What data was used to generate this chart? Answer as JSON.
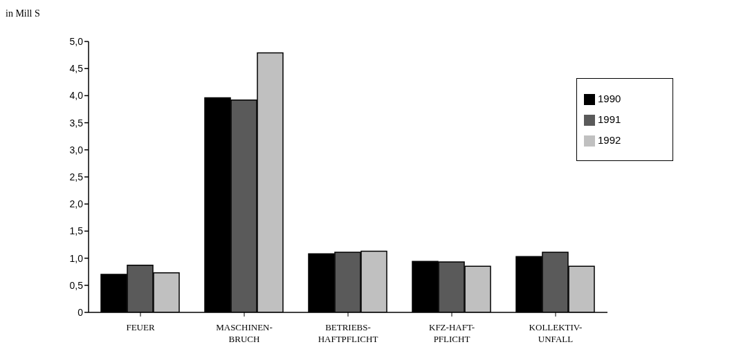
{
  "chart_data": {
    "type": "bar",
    "ylabel": "in Mill S",
    "categories": [
      "FEUER",
      "MASCHINEN-\nBRUCH",
      "BETRIEBS-\nHAFTPFLICHT",
      "KFZ-HAFT-\nPFLICHT",
      "KOLLEKTIV-\nUNFALL"
    ],
    "series": [
      {
        "name": "1990",
        "color": "#000000",
        "values": [
          0.7,
          3.96,
          1.08,
          0.94,
          1.03
        ]
      },
      {
        "name": "1991",
        "color": "#5a5a5a",
        "values": [
          0.87,
          3.92,
          1.11,
          0.93,
          1.11
        ]
      },
      {
        "name": "1992",
        "color": "#c0c0c0",
        "values": [
          0.73,
          4.79,
          1.13,
          0.85,
          0.85
        ]
      }
    ],
    "ylim": [
      0,
      5
    ],
    "yticks": [
      {
        "value": 0,
        "label": "0"
      },
      {
        "value": 0.5,
        "label": "0,5"
      },
      {
        "value": 1,
        "label": "1,0"
      },
      {
        "value": 1.5,
        "label": "1,5"
      },
      {
        "value": 2,
        "label": "2,0"
      },
      {
        "value": 2.5,
        "label": "2,5"
      },
      {
        "value": 3,
        "label": "3,0"
      },
      {
        "value": 3.5,
        "label": "3,5"
      },
      {
        "value": 4,
        "label": "4,0"
      },
      {
        "value": 4.5,
        "label": "4,5"
      },
      {
        "value": 5,
        "label": "5,0"
      }
    ],
    "grid": false,
    "legend": "top right"
  }
}
